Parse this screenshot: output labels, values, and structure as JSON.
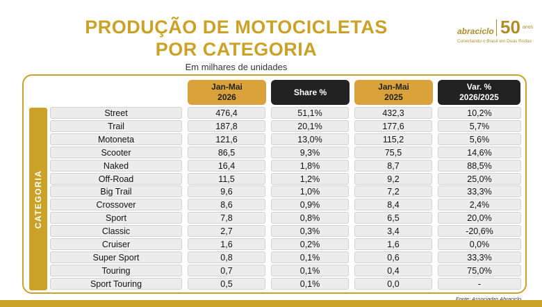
{
  "title": {
    "line1": "PRODUÇÃO DE MOTOCICLETAS",
    "line2": "POR CATEGORIA"
  },
  "subtitle": "Em milhares de unidades",
  "logo": {
    "name": "abraciclo",
    "anniversary": "50",
    "anos": "anos",
    "tagline": "Conectando o Brasil em Duas Rodas"
  },
  "category_label": "CATEGORIA",
  "headers": {
    "jan_mai_2026": "Jan-Mai\n2026",
    "share": "Share %",
    "jan_mai_2025": "Jan-Mai\n2025",
    "var": "Var. %\n2026/2025"
  },
  "rows": [
    {
      "cat": "Street",
      "v2026": "476,4",
      "share": "51,1%",
      "v2025": "432,3",
      "var": "10,2%"
    },
    {
      "cat": "Trail",
      "v2026": "187,8",
      "share": "20,1%",
      "v2025": "177,6",
      "var": "5,7%"
    },
    {
      "cat": "Motoneta",
      "v2026": "121,6",
      "share": "13,0%",
      "v2025": "115,2",
      "var": "5,6%"
    },
    {
      "cat": "Scooter",
      "v2026": "86,5",
      "share": "9,3%",
      "v2025": "75,5",
      "var": "14,6%"
    },
    {
      "cat": "Naked",
      "v2026": "16,4",
      "share": "1,8%",
      "v2025": "8,7",
      "var": "88,5%"
    },
    {
      "cat": "Off-Road",
      "v2026": "11,5",
      "share": "1,2%",
      "v2025": "9,2",
      "var": "25,0%"
    },
    {
      "cat": "Big Trail",
      "v2026": "9,6",
      "share": "1,0%",
      "v2025": "7,2",
      "var": "33,3%"
    },
    {
      "cat": "Crossover",
      "v2026": "8,6",
      "share": "0,9%",
      "v2025": "8,4",
      "var": "2,4%"
    },
    {
      "cat": "Sport",
      "v2026": "7,8",
      "share": "0,8%",
      "v2025": "6,5",
      "var": "20,0%"
    },
    {
      "cat": "Classic",
      "v2026": "2,7",
      "share": "0,3%",
      "v2025": "3,4",
      "var": "-20,6%"
    },
    {
      "cat": "Cruiser",
      "v2026": "1,6",
      "share": "0,2%",
      "v2025": "1,6",
      "var": "0,0%"
    },
    {
      "cat": "Super Sport",
      "v2026": "0,8",
      "share": "0,1%",
      "v2025": "0,6",
      "var": "33,3%"
    },
    {
      "cat": "Touring",
      "v2026": "0,7",
      "share": "0,1%",
      "v2025": "0,4",
      "var": "75,0%"
    },
    {
      "cat": "Sport Touring",
      "v2026": "0,5",
      "share": "0,1%",
      "v2025": "0,0",
      "var": "-"
    }
  ],
  "source": "Fonte: Associadas Abraciclo",
  "colors": {
    "gold": "#c9a227",
    "header_gold": "#d9a23a",
    "header_dark": "#222222",
    "cell_bg": "#ececec"
  }
}
